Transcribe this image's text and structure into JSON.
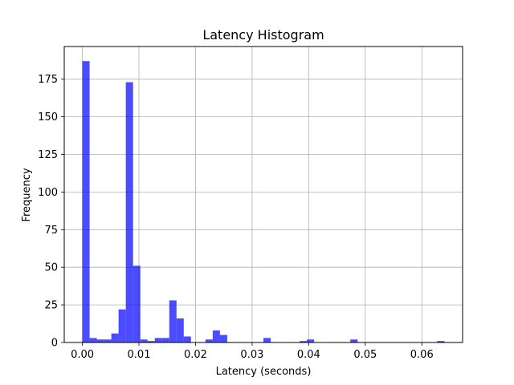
{
  "chart_data": {
    "type": "bar",
    "title": "Latency Histogram",
    "xlabel": "Latency (seconds)",
    "ylabel": "Frequency",
    "xlim": [
      -0.0032,
      0.0672
    ],
    "ylim": [
      0,
      196.7
    ],
    "grid": true,
    "bar_color": "#0000ff",
    "bar_opacity": 0.7,
    "bin_width": 0.00128,
    "xticks": [
      {
        "value": 0.0,
        "label": "0.00"
      },
      {
        "value": 0.01,
        "label": "0.01"
      },
      {
        "value": 0.02,
        "label": "0.02"
      },
      {
        "value": 0.03,
        "label": "0.03"
      },
      {
        "value": 0.04,
        "label": "0.04"
      },
      {
        "value": 0.05,
        "label": "0.05"
      },
      {
        "value": 0.06,
        "label": "0.06"
      }
    ],
    "yticks": [
      {
        "value": 0,
        "label": "0"
      },
      {
        "value": 25,
        "label": "25"
      },
      {
        "value": 50,
        "label": "50"
      },
      {
        "value": 75,
        "label": "75"
      },
      {
        "value": 100,
        "label": "100"
      },
      {
        "value": 125,
        "label": "125"
      },
      {
        "value": 150,
        "label": "150"
      },
      {
        "value": 175,
        "label": "175"
      }
    ],
    "bins": [
      {
        "x": 0.0,
        "count": 187
      },
      {
        "x": 0.00128,
        "count": 3
      },
      {
        "x": 0.00256,
        "count": 2
      },
      {
        "x": 0.00384,
        "count": 2
      },
      {
        "x": 0.00512,
        "count": 6
      },
      {
        "x": 0.0064,
        "count": 22
      },
      {
        "x": 0.00768,
        "count": 173
      },
      {
        "x": 0.00896,
        "count": 51
      },
      {
        "x": 0.01024,
        "count": 2
      },
      {
        "x": 0.01152,
        "count": 1
      },
      {
        "x": 0.0128,
        "count": 3
      },
      {
        "x": 0.01408,
        "count": 3
      },
      {
        "x": 0.01536,
        "count": 28
      },
      {
        "x": 0.01664,
        "count": 16
      },
      {
        "x": 0.01792,
        "count": 4
      },
      {
        "x": 0.02176,
        "count": 2
      },
      {
        "x": 0.02304,
        "count": 8
      },
      {
        "x": 0.02432,
        "count": 5
      },
      {
        "x": 0.032,
        "count": 3
      },
      {
        "x": 0.0384,
        "count": 1
      },
      {
        "x": 0.03968,
        "count": 2
      },
      {
        "x": 0.04736,
        "count": 2
      },
      {
        "x": 0.06272,
        "count": 1
      }
    ]
  }
}
